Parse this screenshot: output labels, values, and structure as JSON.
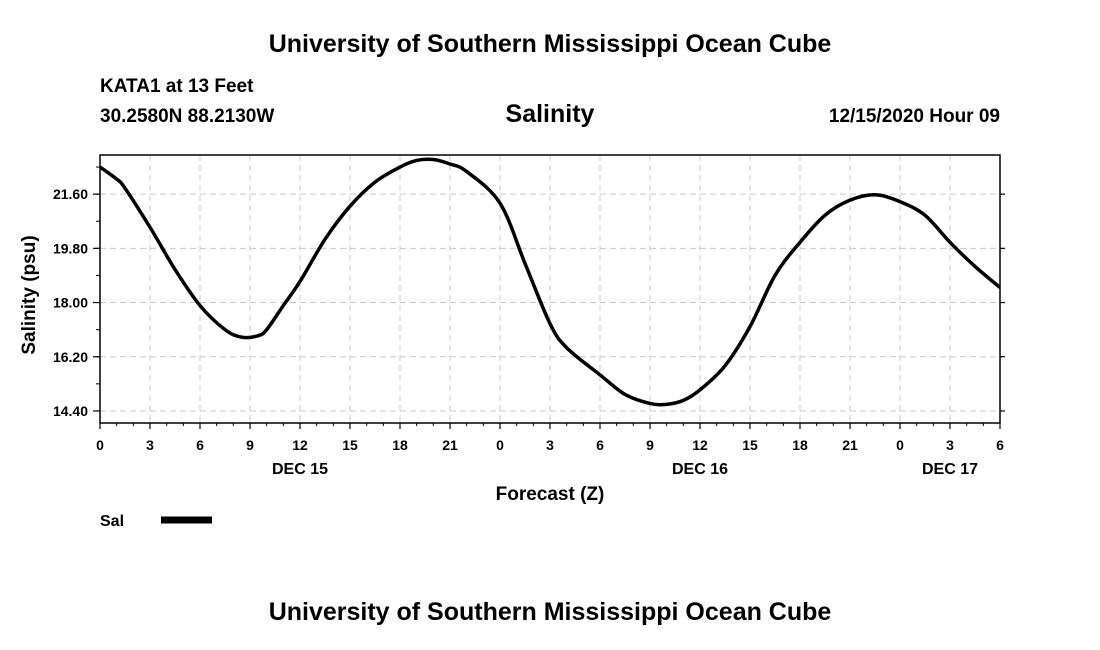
{
  "header": {
    "title_top": "University of Southern Mississippi Ocean Cube",
    "title_bottom": "University of Southern Mississippi Ocean Cube",
    "station": "KATA1 at 13 Feet",
    "coords": "30.2580N 88.2130W",
    "datetime": "12/15/2020 Hour 09"
  },
  "colors": {
    "line": "#000000",
    "grid": "#c8c8c8"
  },
  "chart_data": {
    "type": "line",
    "title": "Salinity",
    "xlabel": "Forecast (Z)",
    "ylabel": "Salinity (psu)",
    "ylim": [
      14.0,
      22.9
    ],
    "xlim": [
      0,
      54
    ],
    "x_unit": "hours from 0Z Dec 15",
    "yticks": [
      14.4,
      16.2,
      18.0,
      19.8,
      21.6
    ],
    "ytick_labels": [
      "14.40",
      "16.20",
      "18.00",
      "19.80",
      "21.60"
    ],
    "xticks": [
      0,
      3,
      6,
      9,
      12,
      15,
      18,
      21,
      24,
      27,
      30,
      33,
      36,
      39,
      42,
      45,
      48,
      51,
      54
    ],
    "xtick_labels": [
      "0",
      "3",
      "6",
      "9",
      "12",
      "15",
      "18",
      "21",
      "0",
      "3",
      "6",
      "9",
      "12",
      "15",
      "18",
      "21",
      "0",
      "3",
      "6"
    ],
    "day_labels": [
      {
        "x": 12,
        "label": "DEC 15"
      },
      {
        "x": 36,
        "label": "DEC 16"
      },
      {
        "x": 51,
        "label": "DEC 17"
      }
    ],
    "legend": {
      "placement": "bottom-left",
      "label": "Sal"
    },
    "series": [
      {
        "name": "Sal",
        "x": [
          0,
          1,
          1.5,
          3,
          4.5,
          6,
          7.5,
          8.5,
          9.5,
          10,
          11,
          12,
          13.5,
          15,
          16.5,
          18,
          19,
          20,
          21,
          22,
          24,
          25.5,
          27,
          28,
          30,
          31.5,
          33,
          34,
          35,
          36,
          37.5,
          39,
          40.5,
          42,
          43.5,
          45,
          46.5,
          48,
          49.5,
          51,
          52.5,
          54
        ],
        "values": [
          22.5,
          22.1,
          21.8,
          20.5,
          19.1,
          17.9,
          17.1,
          16.85,
          16.9,
          17.1,
          17.9,
          18.7,
          20.1,
          21.2,
          22.0,
          22.5,
          22.72,
          22.75,
          22.6,
          22.35,
          21.3,
          19.3,
          17.3,
          16.5,
          15.6,
          14.95,
          14.65,
          14.62,
          14.75,
          15.1,
          15.9,
          17.2,
          18.9,
          20.0,
          20.9,
          21.4,
          21.58,
          21.35,
          20.9,
          20.0,
          19.2,
          18.5
        ]
      }
    ]
  }
}
